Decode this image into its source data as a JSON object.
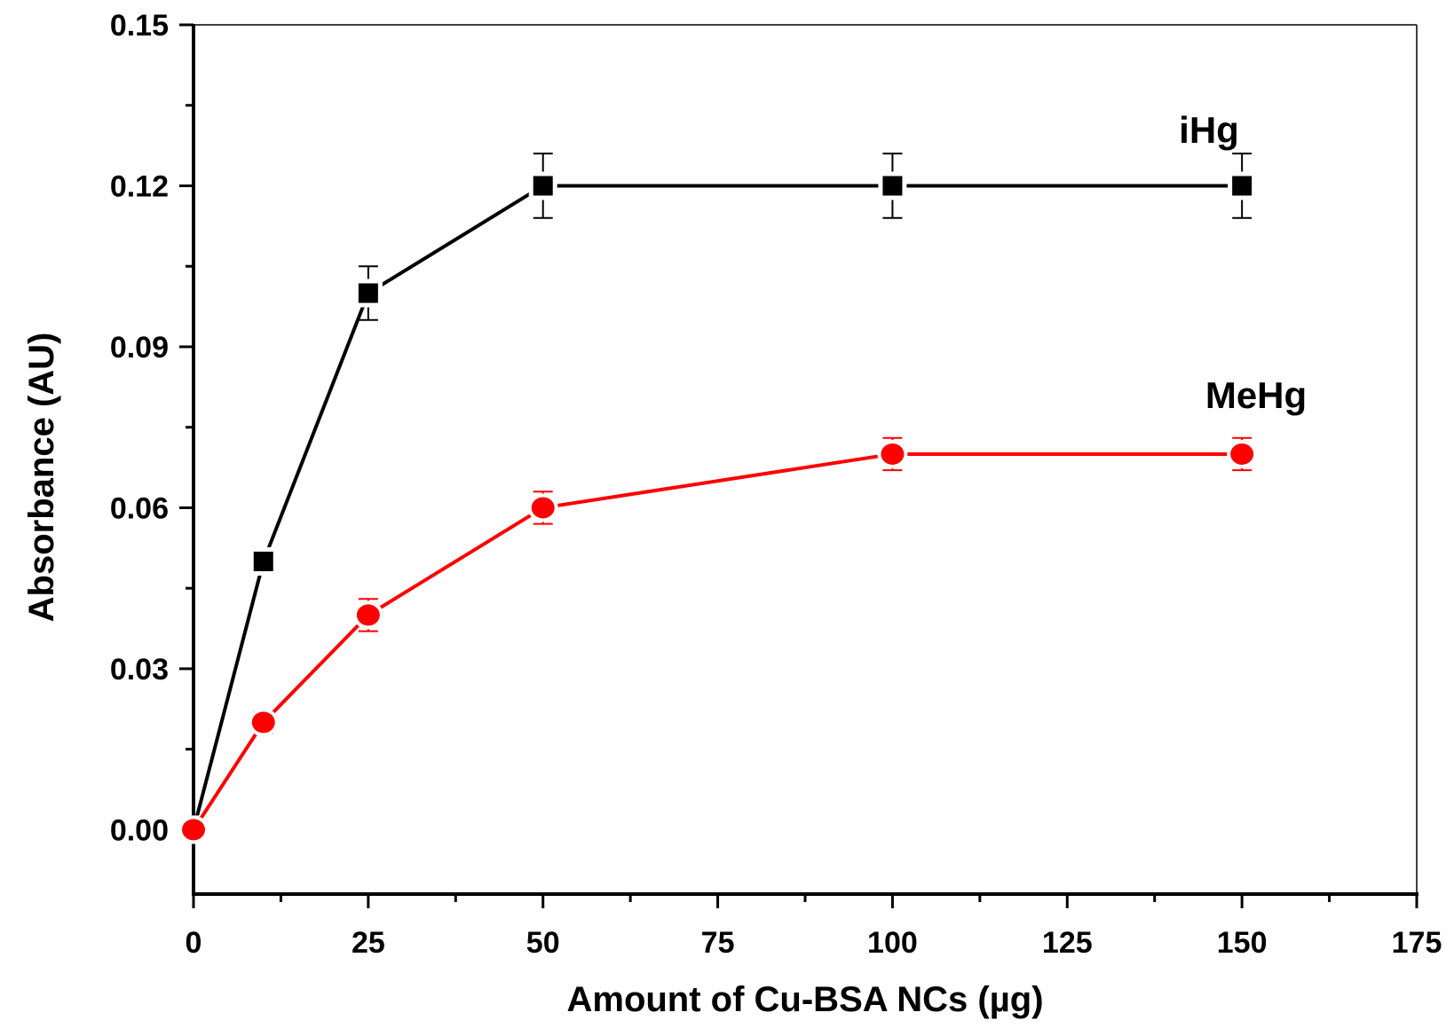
{
  "colors": {
    "iHg": "#000000",
    "MeHg": "#ff0000",
    "axis": "#000000",
    "background": "#ffffff"
  },
  "chart_data": {
    "type": "line",
    "title": "",
    "xlabel": "Amount of Cu-BSA NCs (µg)",
    "ylabel": "Absorbance (AU)",
    "xlim": [
      0,
      175
    ],
    "ylim": [
      -0.012,
      0.15
    ],
    "x_ticks": [
      0,
      25,
      50,
      75,
      100,
      125,
      150,
      175
    ],
    "x_tick_labels": [
      "0",
      "25",
      "50",
      "75",
      "100",
      "125",
      "150",
      "175"
    ],
    "y_ticks": [
      0.0,
      0.03,
      0.06,
      0.09,
      0.12,
      0.15
    ],
    "y_tick_labels": [
      "0.00",
      "0.03",
      "0.06",
      "0.09",
      "0.12",
      "0.15"
    ],
    "grid": false,
    "legend": "labels placed next to series (top-right area)",
    "series": [
      {
        "name": "iHg",
        "marker": "square",
        "color": "#000000",
        "x": [
          0,
          10,
          25,
          50,
          100,
          150
        ],
        "y": [
          0.0,
          0.05,
          0.1,
          0.12,
          0.12,
          0.12
        ],
        "error": [
          0.0,
          0.002,
          0.005,
          0.006,
          0.006,
          0.006
        ]
      },
      {
        "name": "MeHg",
        "marker": "circle",
        "color": "#ff0000",
        "x": [
          0,
          10,
          25,
          50,
          100,
          150
        ],
        "y": [
          0.0,
          0.02,
          0.04,
          0.06,
          0.07,
          0.07
        ],
        "error": [
          0.0,
          0.002,
          0.003,
          0.003,
          0.003,
          0.003
        ]
      }
    ]
  }
}
